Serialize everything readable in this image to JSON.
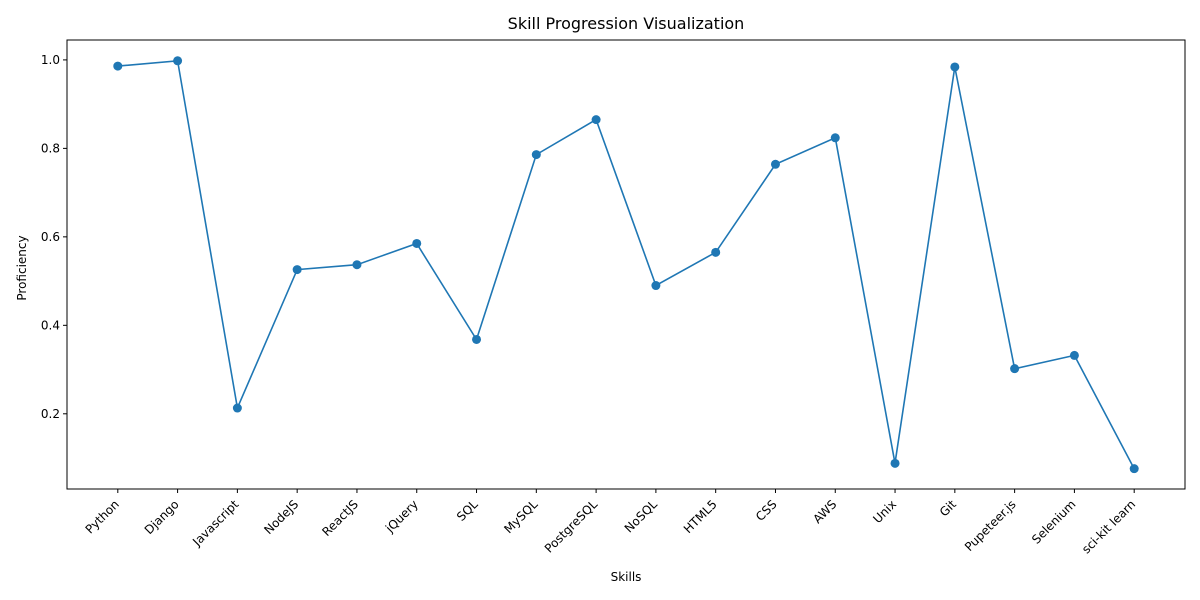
{
  "chart_data": {
    "type": "line",
    "title": "Skill Progression Visualization",
    "xlabel": "Skills",
    "ylabel": "Proficiency",
    "categories": [
      "Python",
      "Django",
      "Javascript",
      "NodeJS",
      "ReactJS",
      "jQuery",
      "SQL",
      "MySQL",
      "PostgreSQL",
      "NoSQL",
      "HTML5",
      "CSS",
      "AWS",
      "Unix",
      "Git",
      "Pupeteer.js",
      "Selenium",
      "sci-kit learn"
    ],
    "values": [
      0.986,
      0.998,
      0.213,
      0.526,
      0.537,
      0.585,
      0.368,
      0.786,
      0.865,
      0.49,
      0.565,
      0.764,
      0.824,
      0.088,
      0.984,
      0.302,
      0.332,
      0.076
    ],
    "ylim": [
      0.03,
      1.045
    ],
    "yticks": [
      "0.2",
      "0.4",
      "0.6",
      "0.8",
      "1.0"
    ],
    "grid": false,
    "markers": true,
    "color": "#1f77b4"
  }
}
